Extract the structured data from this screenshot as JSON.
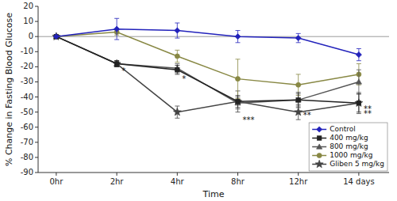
{
  "chart_data": {
    "type": "line",
    "xlabel": "Time",
    "ylabel": "% Change in Fasting Blood Glucose",
    "categories": [
      "0hr",
      "2hr",
      "4hr",
      "8hr",
      "12hr",
      "14 days"
    ],
    "series": [
      {
        "name": "Control",
        "color": "#2222bb",
        "marker": "diamond",
        "line_style": "solid",
        "values": [
          0,
          5,
          4,
          0,
          -1,
          -12
        ],
        "errors": [
          0,
          7,
          5,
          4,
          3,
          4
        ]
      },
      {
        "name": "400 mg/kg",
        "color": "#222222",
        "marker": "square",
        "line_style": "solid",
        "values": [
          0,
          -18,
          -22,
          -43,
          -42,
          -44
        ],
        "errors": [
          0,
          2,
          3,
          4,
          5,
          6
        ]
      },
      {
        "name": "800 mg/kg",
        "color": "#555555",
        "marker": "triangle",
        "line_style": "solid",
        "values": [
          0,
          -18,
          -21,
          -44,
          -42,
          -30
        ],
        "errors": [
          0,
          2,
          3,
          4,
          4,
          8
        ]
      },
      {
        "name": "1000 mg/kg",
        "color": "#888844",
        "marker": "circle",
        "line_style": "solid",
        "values": [
          0,
          3,
          -13,
          -28,
          -32,
          -25
        ],
        "errors": [
          0,
          2,
          4,
          13,
          7,
          7
        ]
      },
      {
        "name": "Gliben 5 mg/kg",
        "color": "#444444",
        "marker": "star",
        "line_style": "solid",
        "values": [
          0,
          -18,
          -50,
          -43,
          -50,
          -44
        ],
        "errors": [
          0,
          2,
          4,
          7,
          5,
          7
        ]
      }
    ],
    "annotations": [
      {
        "text": "*",
        "x": "2hr",
        "y": -21
      },
      {
        "text": "*",
        "x": "4hr",
        "y": -26
      },
      {
        "text": "***",
        "x": "8hr",
        "y": -53
      },
      {
        "text": "**",
        "x": "12hr",
        "y": -50
      },
      {
        "text": "**",
        "x": "14 days",
        "y": -46
      },
      {
        "text": "**",
        "x": "14 days",
        "y": -49
      }
    ],
    "ylim": [
      -90,
      20
    ],
    "yticks": [
      20,
      10,
      0,
      -10,
      -20,
      -30,
      -40,
      -50,
      -60,
      -70,
      -80,
      -90
    ],
    "grid": false,
    "legend": "lower right"
  }
}
